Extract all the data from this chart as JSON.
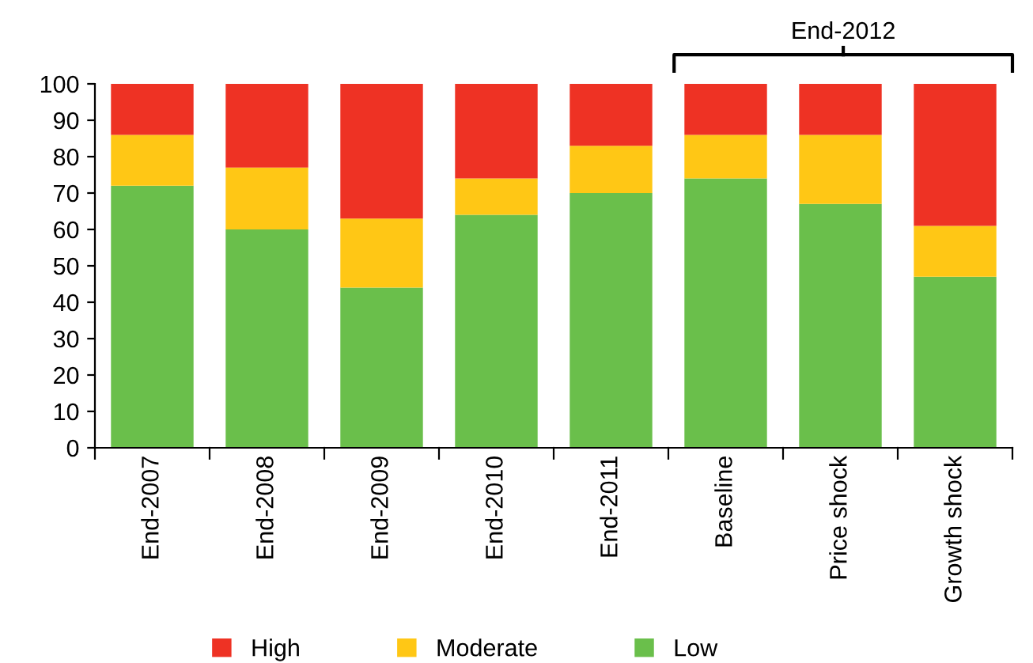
{
  "chart_data": {
    "type": "bar",
    "stacked": true,
    "categories": [
      "End-2007",
      "End-2008",
      "End-2009",
      "End-2010",
      "End-2011",
      "Baseline",
      "Price shock",
      "Growth shock"
    ],
    "series": [
      {
        "name": "Low",
        "color": "#6abf4b",
        "values": [
          72,
          60,
          44,
          64,
          70,
          74,
          67,
          47
        ]
      },
      {
        "name": "Moderate",
        "color": "#ffc715",
        "values": [
          14,
          17,
          19,
          10,
          13,
          12,
          19,
          14
        ]
      },
      {
        "name": "High",
        "color": "#ee3224",
        "values": [
          14,
          23,
          37,
          26,
          17,
          14,
          14,
          39
        ]
      }
    ],
    "ylim": [
      0,
      100
    ],
    "yticks": [
      0,
      10,
      20,
      30,
      40,
      50,
      60,
      70,
      80,
      90,
      100
    ],
    "grid": false,
    "legend": "bottom",
    "annotations": [
      "End-2012"
    ]
  }
}
